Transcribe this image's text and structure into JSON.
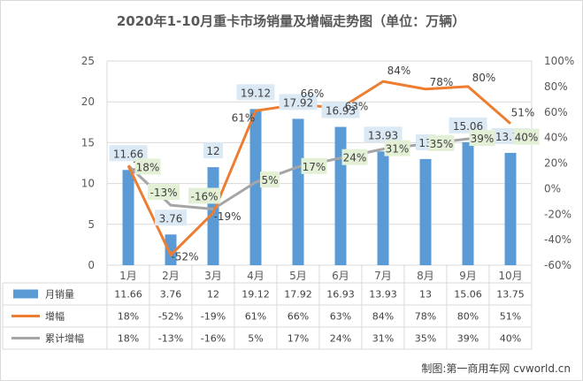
{
  "chart_data": {
    "type": "bar",
    "title": "2020年1-10月重卡市场销量及增幅走势图（单位：万辆）",
    "categories": [
      "1月",
      "2月",
      "3月",
      "4月",
      "5月",
      "6月",
      "7月",
      "8月",
      "9月",
      "10月"
    ],
    "series": [
      {
        "name": "月销量",
        "type": "bar",
        "axis": "left",
        "values": [
          11.66,
          3.76,
          12,
          19.12,
          17.92,
          16.93,
          13.93,
          13,
          15.06,
          13.75
        ],
        "labels": [
          "11.66",
          "3.76",
          "12",
          "19.12",
          "17.92",
          "16.93",
          "13.93",
          "13",
          "15.06",
          "13.75"
        ],
        "color": "#5b9bd5"
      },
      {
        "name": "增幅",
        "type": "line",
        "axis": "right",
        "values": [
          18,
          -52,
          -19,
          61,
          66,
          63,
          84,
          78,
          80,
          51
        ],
        "labels": [
          "18%",
          "-52%",
          "-19%",
          "61%",
          "66%",
          "63%",
          "84%",
          "78%",
          "80%",
          "51%"
        ],
        "color": "#ed7d31"
      },
      {
        "name": "累计增幅",
        "type": "line",
        "axis": "right",
        "values": [
          18,
          -13,
          -16,
          5,
          17,
          24,
          31,
          35,
          39,
          40
        ],
        "labels": [
          "18%",
          "-13%",
          "-16%",
          "5%",
          "17%",
          "24%",
          "31%",
          "35%",
          "39%",
          "40%"
        ],
        "color": "#a5a5a5"
      }
    ],
    "y_left": {
      "min": 0,
      "max": 25,
      "step": 5,
      "tick_labels": [
        "0",
        "5",
        "10",
        "15",
        "20",
        "25"
      ]
    },
    "y_right": {
      "min": -60,
      "max": 100,
      "step": 20,
      "tick_labels": [
        "-60%",
        "-40%",
        "-20%",
        "0%",
        "20%",
        "40%",
        "60%",
        "80%",
        "100%"
      ]
    },
    "grid": true,
    "data_table": true,
    "colors": {
      "bar_label_bg": "#dbe9f5",
      "cum_label_bg": "#e3f0d6",
      "grid": "#d9d9d9"
    }
  },
  "credit": "制图:第一商用车网 cvworld.cn"
}
